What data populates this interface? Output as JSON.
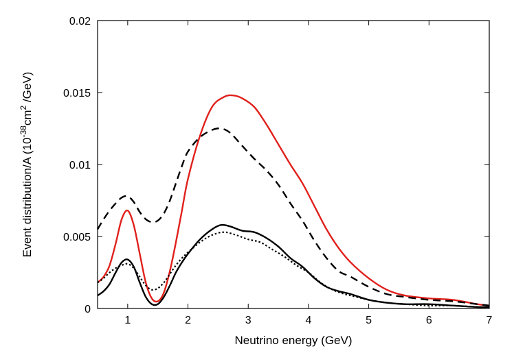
{
  "chart_data": {
    "type": "line",
    "title": "",
    "xlabel": "Neutrino energy (GeV)",
    "ylabel": {
      "base": "Event distribution/A (10",
      "sup1": "-38",
      "mid": "cm",
      "sup2": "2",
      "tail": " /GeV)"
    },
    "xlim": [
      0.5,
      7
    ],
    "ylim": [
      0,
      0.02
    ],
    "xticks": [
      1,
      2,
      3,
      4,
      5,
      6,
      7
    ],
    "xtick_labels": [
      "1",
      "2",
      "3",
      "4",
      "5",
      "6",
      "7"
    ],
    "yticks": [
      0,
      0.005,
      0.01,
      0.015,
      0.02
    ],
    "ytick_labels": [
      "0",
      "0.005",
      "0.01",
      "0.015",
      "0.02"
    ],
    "legend": "none",
    "series": [
      {
        "name": "red-solid",
        "color": "#e0201b",
        "style": "solid",
        "points": [
          [
            0.5,
            0.0018
          ],
          [
            0.6,
            0.0022
          ],
          [
            0.7,
            0.003
          ],
          [
            0.8,
            0.0045
          ],
          [
            0.9,
            0.0062
          ],
          [
            1.0,
            0.0068
          ],
          [
            1.1,
            0.0058
          ],
          [
            1.2,
            0.0038
          ],
          [
            1.3,
            0.0018
          ],
          [
            1.4,
            0.0007
          ],
          [
            1.5,
            0.0005
          ],
          [
            1.6,
            0.0011
          ],
          [
            1.7,
            0.0026
          ],
          [
            1.8,
            0.0046
          ],
          [
            1.9,
            0.0068
          ],
          [
            2.0,
            0.009
          ],
          [
            2.2,
            0.012
          ],
          [
            2.4,
            0.014
          ],
          [
            2.6,
            0.0147
          ],
          [
            2.75,
            0.0148
          ],
          [
            2.9,
            0.0146
          ],
          [
            3.1,
            0.014
          ],
          [
            3.3,
            0.0128
          ],
          [
            3.5,
            0.0114
          ],
          [
            3.7,
            0.01
          ],
          [
            3.9,
            0.0087
          ],
          [
            4.1,
            0.0071
          ],
          [
            4.3,
            0.0055
          ],
          [
            4.5,
            0.0042
          ],
          [
            4.7,
            0.0032
          ],
          [
            5.0,
            0.0021
          ],
          [
            5.3,
            0.0013
          ],
          [
            5.6,
            0.0009
          ],
          [
            6.0,
            0.0007
          ],
          [
            6.4,
            0.0006
          ],
          [
            6.8,
            0.0003
          ],
          [
            7.0,
            0.0002
          ]
        ]
      },
      {
        "name": "black-dashed",
        "color": "#000000",
        "style": "dashed",
        "points": [
          [
            0.5,
            0.0055
          ],
          [
            0.6,
            0.0062
          ],
          [
            0.7,
            0.0068
          ],
          [
            0.8,
            0.0073
          ],
          [
            0.9,
            0.0077
          ],
          [
            1.0,
            0.0078
          ],
          [
            1.1,
            0.0074
          ],
          [
            1.2,
            0.0067
          ],
          [
            1.3,
            0.0062
          ],
          [
            1.4,
            0.006
          ],
          [
            1.5,
            0.0061
          ],
          [
            1.6,
            0.0066
          ],
          [
            1.7,
            0.0075
          ],
          [
            1.8,
            0.0087
          ],
          [
            1.9,
            0.0099
          ],
          [
            2.0,
            0.0109
          ],
          [
            2.2,
            0.0119
          ],
          [
            2.4,
            0.0124
          ],
          [
            2.55,
            0.0125
          ],
          [
            2.7,
            0.0122
          ],
          [
            2.9,
            0.0113
          ],
          [
            3.1,
            0.0104
          ],
          [
            3.3,
            0.0096
          ],
          [
            3.5,
            0.0086
          ],
          [
            3.7,
            0.0073
          ],
          [
            3.9,
            0.0061
          ],
          [
            4.1,
            0.0047
          ],
          [
            4.3,
            0.0035
          ],
          [
            4.5,
            0.0026
          ],
          [
            4.7,
            0.0022
          ],
          [
            5.0,
            0.0015
          ],
          [
            5.3,
            0.001
          ],
          [
            5.6,
            0.0008
          ],
          [
            6.0,
            0.0006
          ],
          [
            6.4,
            0.0005
          ],
          [
            6.8,
            0.0003
          ],
          [
            7.0,
            0.0002
          ]
        ]
      },
      {
        "name": "black-solid",
        "color": "#000000",
        "style": "solid",
        "points": [
          [
            0.5,
            0.0009
          ],
          [
            0.6,
            0.0012
          ],
          [
            0.7,
            0.0017
          ],
          [
            0.8,
            0.0025
          ],
          [
            0.9,
            0.0032
          ],
          [
            1.0,
            0.0034
          ],
          [
            1.1,
            0.0029
          ],
          [
            1.2,
            0.0018
          ],
          [
            1.3,
            0.0008
          ],
          [
            1.4,
            0.0003
          ],
          [
            1.5,
            0.0003
          ],
          [
            1.6,
            0.0008
          ],
          [
            1.7,
            0.0016
          ],
          [
            1.8,
            0.0025
          ],
          [
            1.9,
            0.0032
          ],
          [
            2.0,
            0.0038
          ],
          [
            2.2,
            0.0048
          ],
          [
            2.4,
            0.0055
          ],
          [
            2.55,
            0.0058
          ],
          [
            2.7,
            0.0057
          ],
          [
            2.9,
            0.0054
          ],
          [
            3.1,
            0.0053
          ],
          [
            3.3,
            0.0049
          ],
          [
            3.5,
            0.0043
          ],
          [
            3.7,
            0.0035
          ],
          [
            3.9,
            0.0029
          ],
          [
            4.1,
            0.0021
          ],
          [
            4.3,
            0.0015
          ],
          [
            4.5,
            0.0012
          ],
          [
            4.7,
            0.001
          ],
          [
            5.0,
            0.0006
          ],
          [
            5.3,
            0.0004
          ],
          [
            5.6,
            0.0003
          ],
          [
            6.0,
            0.0003
          ],
          [
            6.4,
            0.0002
          ],
          [
            6.8,
            0.0001
          ],
          [
            7.0,
            0.0001
          ]
        ]
      },
      {
        "name": "black-dotted",
        "color": "#000000",
        "style": "dotted",
        "points": [
          [
            0.5,
            0.0018
          ],
          [
            0.6,
            0.0021
          ],
          [
            0.7,
            0.0025
          ],
          [
            0.8,
            0.0028
          ],
          [
            0.9,
            0.003
          ],
          [
            1.0,
            0.0031
          ],
          [
            1.1,
            0.0028
          ],
          [
            1.2,
            0.0022
          ],
          [
            1.3,
            0.0016
          ],
          [
            1.4,
            0.0013
          ],
          [
            1.5,
            0.0014
          ],
          [
            1.6,
            0.0018
          ],
          [
            1.7,
            0.0024
          ],
          [
            1.8,
            0.003
          ],
          [
            1.9,
            0.0035
          ],
          [
            2.0,
            0.0039
          ],
          [
            2.2,
            0.0046
          ],
          [
            2.4,
            0.0051
          ],
          [
            2.6,
            0.0053
          ],
          [
            2.8,
            0.0051
          ],
          [
            3.0,
            0.0048
          ],
          [
            3.2,
            0.0046
          ],
          [
            3.4,
            0.0041
          ],
          [
            3.6,
            0.0036
          ],
          [
            3.8,
            0.003
          ],
          [
            4.0,
            0.0025
          ],
          [
            4.2,
            0.0018
          ],
          [
            4.4,
            0.0013
          ],
          [
            4.6,
            0.001
          ],
          [
            4.8,
            0.0008
          ],
          [
            5.0,
            0.0006
          ],
          [
            5.3,
            0.0004
          ],
          [
            5.6,
            0.0003
          ],
          [
            6.0,
            0.0002
          ],
          [
            6.4,
            0.0002
          ],
          [
            6.8,
            0.0001
          ],
          [
            7.0,
            0.0001
          ]
        ]
      }
    ]
  }
}
